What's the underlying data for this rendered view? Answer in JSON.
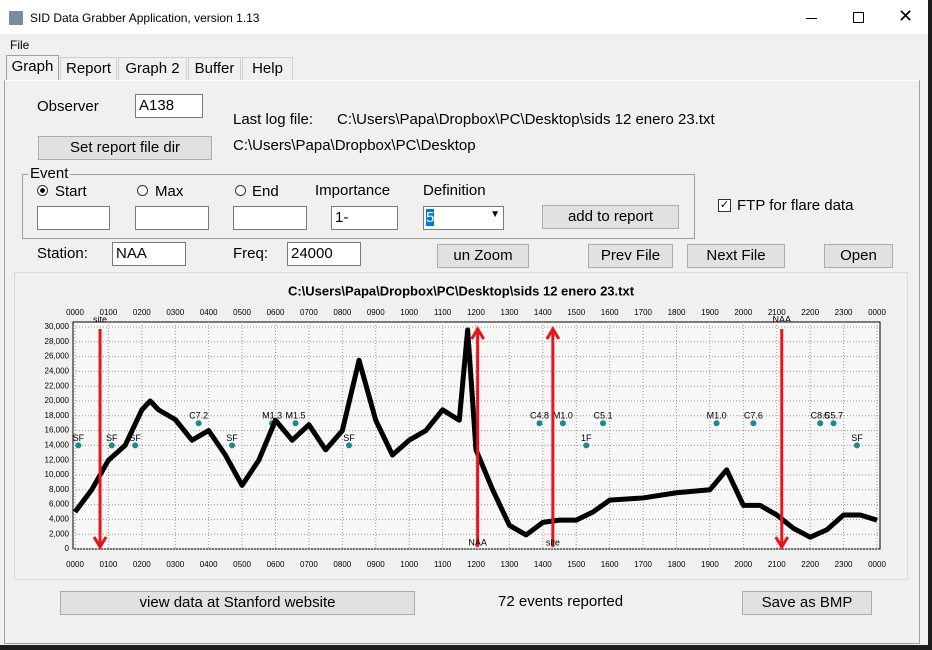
{
  "window": {
    "title": "SID Data Grabber Application, version 1.13"
  },
  "menu": [
    "File"
  ],
  "tabs": [
    "Graph",
    "Report",
    "Graph 2",
    "Buffer",
    "Help"
  ],
  "form": {
    "observer_label": "Observer",
    "observer": "A138",
    "last_log_label": "Last log file:",
    "last_log": "C:\\Users\\Papa\\Dropbox\\PC\\Desktop\\sids 12 enero 23.txt",
    "set_dir_button": "Set report file dir",
    "report_dir": "C:\\Users\\Papa\\Dropbox\\PC\\Desktop",
    "event_group": "Event",
    "start": "Start",
    "max": "Max",
    "end": "End",
    "importance_label": "Importance",
    "importance": "1-",
    "definition_label": "Definition",
    "definition": "5",
    "add_button": "add to report",
    "ftp": "FTP for flare data",
    "station_label": "Station:",
    "station": "NAA",
    "freq_label": "Freq:",
    "freq": "24000",
    "unzoom": "un Zoom",
    "prev": "Prev File",
    "next": "Next File",
    "open": "Open"
  },
  "footer": {
    "stanford": "view data at Stanford website",
    "events": "72 events reported",
    "save": "Save as BMP"
  },
  "chart_data": {
    "type": "line",
    "title": "C:\\Users\\Papa\\Dropbox\\PC\\Desktop\\sids 12 enero 23.txt",
    "x": [
      0,
      0.5,
      1,
      1.5,
      2,
      2.25,
      2.5,
      3,
      3.5,
      4,
      4.5,
      5,
      5.5,
      6,
      6.5,
      7,
      7.5,
      8,
      8.5,
      9,
      9.5,
      10,
      10.5,
      11,
      11.5,
      11.75,
      12,
      12.5,
      13,
      13.5,
      14,
      14.5,
      15,
      15.5,
      16,
      17,
      18,
      19,
      19.5,
      20,
      20.5,
      21,
      21.5,
      22,
      22.5,
      23,
      23.5,
      24
    ],
    "series": [
      {
        "color": "#000000",
        "values": [
          5000,
          8000,
          12000,
          14000,
          18800,
          20000,
          18800,
          17500,
          14700,
          16000,
          12700,
          8600,
          12000,
          17400,
          14700,
          16800,
          13400,
          16000,
          25500,
          17400,
          12700,
          14700,
          16000,
          18800,
          17400,
          29600,
          13400,
          8000,
          3200,
          1900,
          3600,
          3900,
          3900,
          5000,
          6600,
          6900,
          7600,
          8000,
          10700,
          5900,
          5900,
          4600,
          2800,
          1600,
          2600,
          4600,
          4600,
          3900
        ]
      }
    ],
    "xlim": [
      0,
      24
    ],
    "ylim": [
      0,
      30000
    ],
    "xticks": [
      {
        "value": 0,
        "label": "0000"
      },
      {
        "value": 1,
        "label": "0100"
      },
      {
        "value": 2,
        "label": "0200"
      },
      {
        "value": 3,
        "label": "0300"
      },
      {
        "value": 4,
        "label": "0400"
      },
      {
        "value": 5,
        "label": "0500"
      },
      {
        "value": 6,
        "label": "0600"
      },
      {
        "value": 7,
        "label": "0700"
      },
      {
        "value": 8,
        "label": "0800"
      },
      {
        "value": 9,
        "label": "0900"
      },
      {
        "value": 10,
        "label": "1000"
      },
      {
        "value": 11,
        "label": "1100"
      },
      {
        "value": 12,
        "label": "1200"
      },
      {
        "value": 13,
        "label": "1300"
      },
      {
        "value": 14,
        "label": "1400"
      },
      {
        "value": 15,
        "label": "1500"
      },
      {
        "value": 16,
        "label": "1600"
      },
      {
        "value": 17,
        "label": "1700"
      },
      {
        "value": 18,
        "label": "1800"
      },
      {
        "value": 19,
        "label": "1900"
      },
      {
        "value": 20,
        "label": "2000"
      },
      {
        "value": 21,
        "label": "2100"
      },
      {
        "value": 22,
        "label": "2200"
      },
      {
        "value": 23,
        "label": "2300"
      },
      {
        "value": 24,
        "label": "0000"
      }
    ],
    "yticks": [
      0,
      {
        "value": 2000,
        "label": "2,000"
      },
      {
        "value": 4000,
        "label": "4,000"
      },
      {
        "value": 6000,
        "label": "6,000"
      },
      {
        "value": 8000,
        "label": "8,000"
      },
      {
        "value": 10000,
        "label": "10,000"
      },
      {
        "value": 12000,
        "label": "12,000"
      },
      {
        "value": 14000,
        "label": "14,000"
      },
      {
        "value": 16000,
        "label": "16,000"
      },
      {
        "value": 18000,
        "label": "18,000"
      },
      {
        "value": 20000,
        "label": "20,000"
      },
      {
        "value": 22000,
        "label": "22,000"
      },
      {
        "value": 24000,
        "label": "24,000"
      },
      {
        "value": 26000,
        "label": "26,000"
      },
      {
        "value": 28000,
        "label": "28,000"
      },
      {
        "value": 30000,
        "label": "30,000"
      }
    ],
    "grid": true,
    "markers": [
      {
        "x": 0.75,
        "label": "site",
        "direction": "down",
        "color": "#e8141b"
      },
      {
        "x": 12.05,
        "label": "NAA",
        "direction": "up",
        "color": "#e8141b"
      },
      {
        "x": 14.3,
        "label": "site",
        "direction": "up",
        "color": "#e8141b"
      },
      {
        "x": 21.15,
        "label": "NAA",
        "direction": "down",
        "color": "#e8141b"
      }
    ],
    "events": {
      "color": "#1a8a8a",
      "items": [
        {
          "x": 0.1,
          "y": 14000,
          "label": "SF"
        },
        {
          "x": 1.1,
          "y": 14000,
          "label": "SF"
        },
        {
          "x": 1.8,
          "y": 14000,
          "label": "SF"
        },
        {
          "x": 3.7,
          "y": 17000,
          "label": "C7.2"
        },
        {
          "x": 4.7,
          "y": 14000,
          "label": "SF"
        },
        {
          "x": 5.9,
          "y": 17000,
          "label": "M1.3"
        },
        {
          "x": 6.6,
          "y": 17000,
          "label": "M1.5"
        },
        {
          "x": 8.2,
          "y": 14000,
          "label": "SF"
        },
        {
          "x": 13.9,
          "y": 17000,
          "label": "C4.8"
        },
        {
          "x": 14.6,
          "y": 17000,
          "label": "M1.0"
        },
        {
          "x": 15.3,
          "y": 14000,
          "label": "1F"
        },
        {
          "x": 15.8,
          "y": 17000,
          "label": "C5.1"
        },
        {
          "x": 19.2,
          "y": 17000,
          "label": "M1.0"
        },
        {
          "x": 20.3,
          "y": 17000,
          "label": "C7.6"
        },
        {
          "x": 22.3,
          "y": 17000,
          "label": "C8.5"
        },
        {
          "x": 22.7,
          "y": 17000,
          "label": "C5.7"
        },
        {
          "x": 23.4,
          "y": 14000,
          "label": "SF"
        }
      ]
    }
  }
}
